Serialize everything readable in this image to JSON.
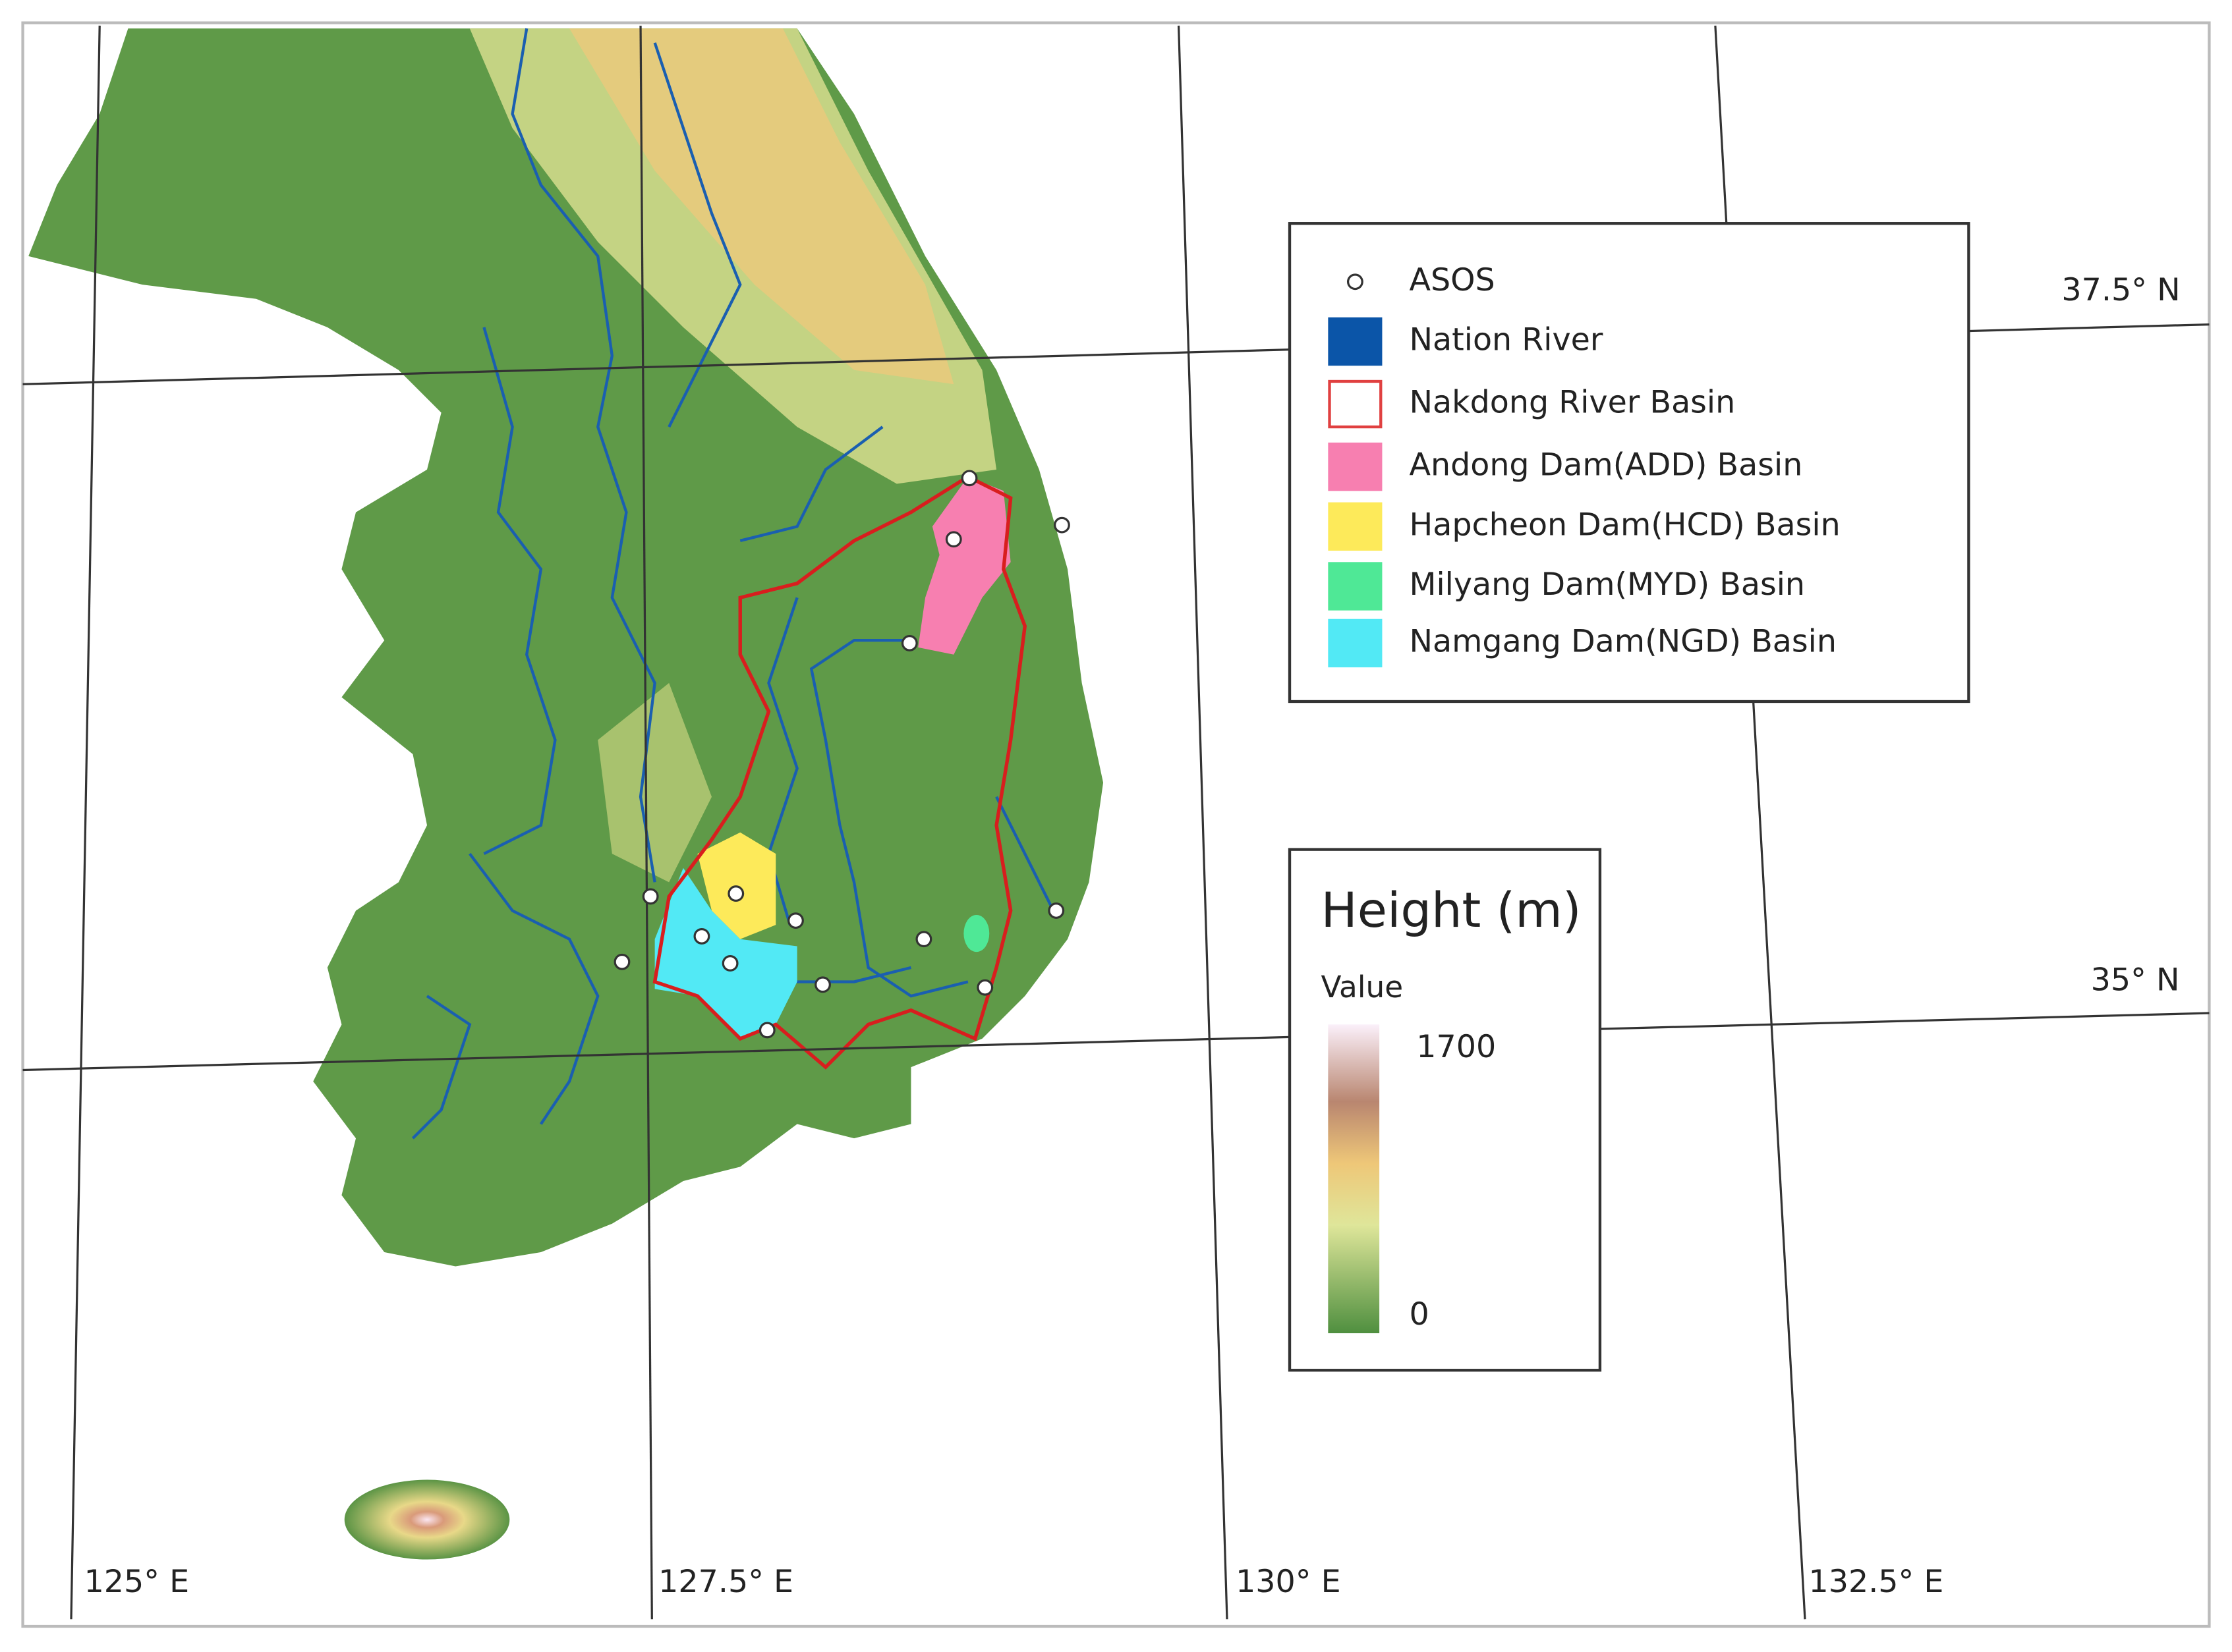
{
  "map": {
    "graticule": {
      "latitudes": [
        "37.5° N",
        "35° N"
      ],
      "longitudes": [
        "125° E",
        "127.5° E",
        "130° E",
        "132.5° E"
      ]
    },
    "legend": {
      "items": [
        {
          "label": "ASOS"
        },
        {
          "label": "Nation River",
          "color": "#0b55a8"
        },
        {
          "label": "Nakdong River Basin",
          "color": "#e04040"
        },
        {
          "label": "Andong Dam(ADD) Basin",
          "color": "#f77fb0"
        },
        {
          "label": "Hapcheon Dam(HCD) Basin",
          "color": "#fdea5a"
        },
        {
          "label": "Milyang Dam(MYD) Basin",
          "color": "#4fe896"
        },
        {
          "label": "Namgang Dam(NGD) Basin",
          "color": "#52e9f5"
        }
      ]
    },
    "colorbar": {
      "title": "Height (m)",
      "subtitle": "Value",
      "max": "1700",
      "min": "0"
    }
  }
}
